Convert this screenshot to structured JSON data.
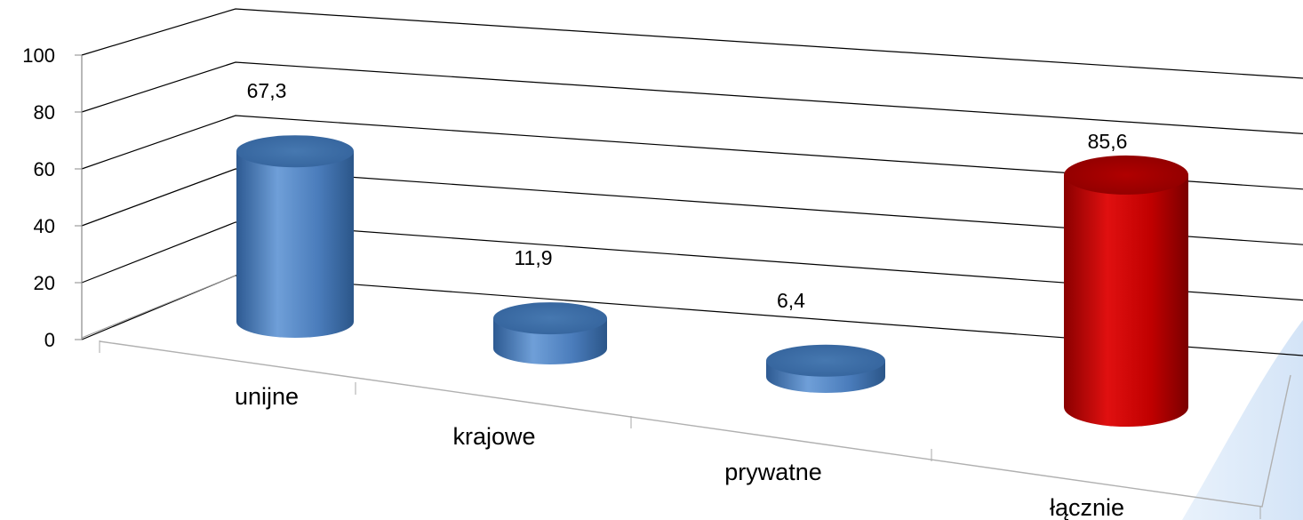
{
  "chart_data": {
    "type": "bar",
    "style": "3d-cylinder",
    "categories": [
      "unijne",
      "krajowe",
      "prywatne",
      "łącznie"
    ],
    "values": [
      67.3,
      11.9,
      6.4,
      85.6
    ],
    "value_labels": [
      "67,3",
      "11,9",
      "6,4",
      "85,6"
    ],
    "bar_colors": [
      "#4f81bd",
      "#4f81bd",
      "#4f81bd",
      "#c00000"
    ],
    "ylim": [
      0,
      100
    ],
    "yticks": [
      "0",
      "20",
      "40",
      "60",
      "80",
      "100"
    ],
    "grid": true,
    "legend": false
  }
}
